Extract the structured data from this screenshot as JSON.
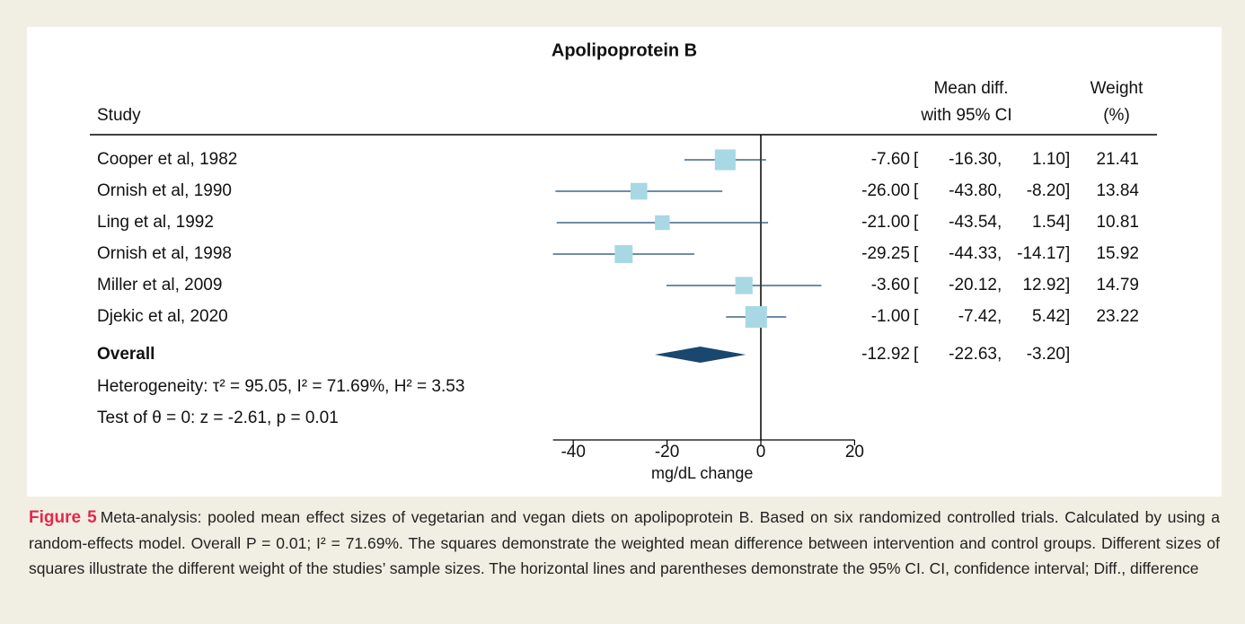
{
  "chart_data": {
    "type": "forest",
    "title": "Apolipoprotein B",
    "study_header": "Study",
    "effect_header": [
      "Mean diff.",
      "with 95% CI"
    ],
    "weight_header": [
      "Weight",
      "(%)"
    ],
    "categories": [
      "Cooper et al, 1982",
      "Ornish et al, 1990",
      "Ling et al, 1992",
      "Ornish et al, 1998",
      "Miller et al, 2009",
      "Djekic et al, 2020"
    ],
    "values": [
      -7.6,
      -26,
      -21,
      -29.25,
      -3.6,
      -1
    ],
    "value_labels": [
      "-7.60",
      "-26.00",
      "-21.00",
      "-29.25",
      "-3.60",
      "-1.00"
    ],
    "ci_low": [
      -16.3,
      -43.8,
      -43.54,
      -44.33,
      -20.12,
      -7.42
    ],
    "ci_low_labels": [
      "-16.30",
      "-43.80",
      "-43.54",
      "-44.33",
      "-20.12",
      "-7.42"
    ],
    "ci_high": [
      1.1,
      -8.2,
      1.54,
      -14.17,
      12.92,
      5.42
    ],
    "ci_high_labels": [
      "1.10",
      "-8.20",
      "1.54",
      "-14.17",
      "12.92",
      "5.42"
    ],
    "weights": [
      21.41,
      13.84,
      10.81,
      15.92,
      14.79,
      23.22
    ],
    "ci_open": "[",
    "ci_sep": ",",
    "ci_close": "]",
    "overall": {
      "label": "Overall",
      "value": -12.92,
      "value_label": "-12.92",
      "ci_low": -22.63,
      "ci_low_label": "-22.63",
      "ci_high": -3.2,
      "ci_high_label": "-3.20"
    },
    "heterogeneity": "Heterogeneity: τ² = 95.05, I² = 71.69%, H² = 3.53",
    "test": "Test of θ = 0: z = -2.61, p = 0.01",
    "xlim": [
      -44.33,
      20
    ],
    "xticks": [
      -40,
      -20,
      0,
      20
    ],
    "xlabel": "mg/dL change",
    "square_color": "#a8d8e4",
    "line_color": "#1a476f"
  },
  "caption": {
    "label": "Figure 5",
    "text": "Meta-analysis: pooled mean effect sizes of vegetarian and vegan diets on apolipoprotein B. Based on six randomized controlled trials. Calculated by using a random-effects model. Overall P = 0.01; I² = 71.69%. The squares demonstrate the weighted mean difference between intervention and control groups. Different sizes of squares illustrate the different weight of the studies’ sample sizes. The horizontal lines and parentheses demonstrate the 95% CI. CI, confidence interval; Diff., difference"
  }
}
